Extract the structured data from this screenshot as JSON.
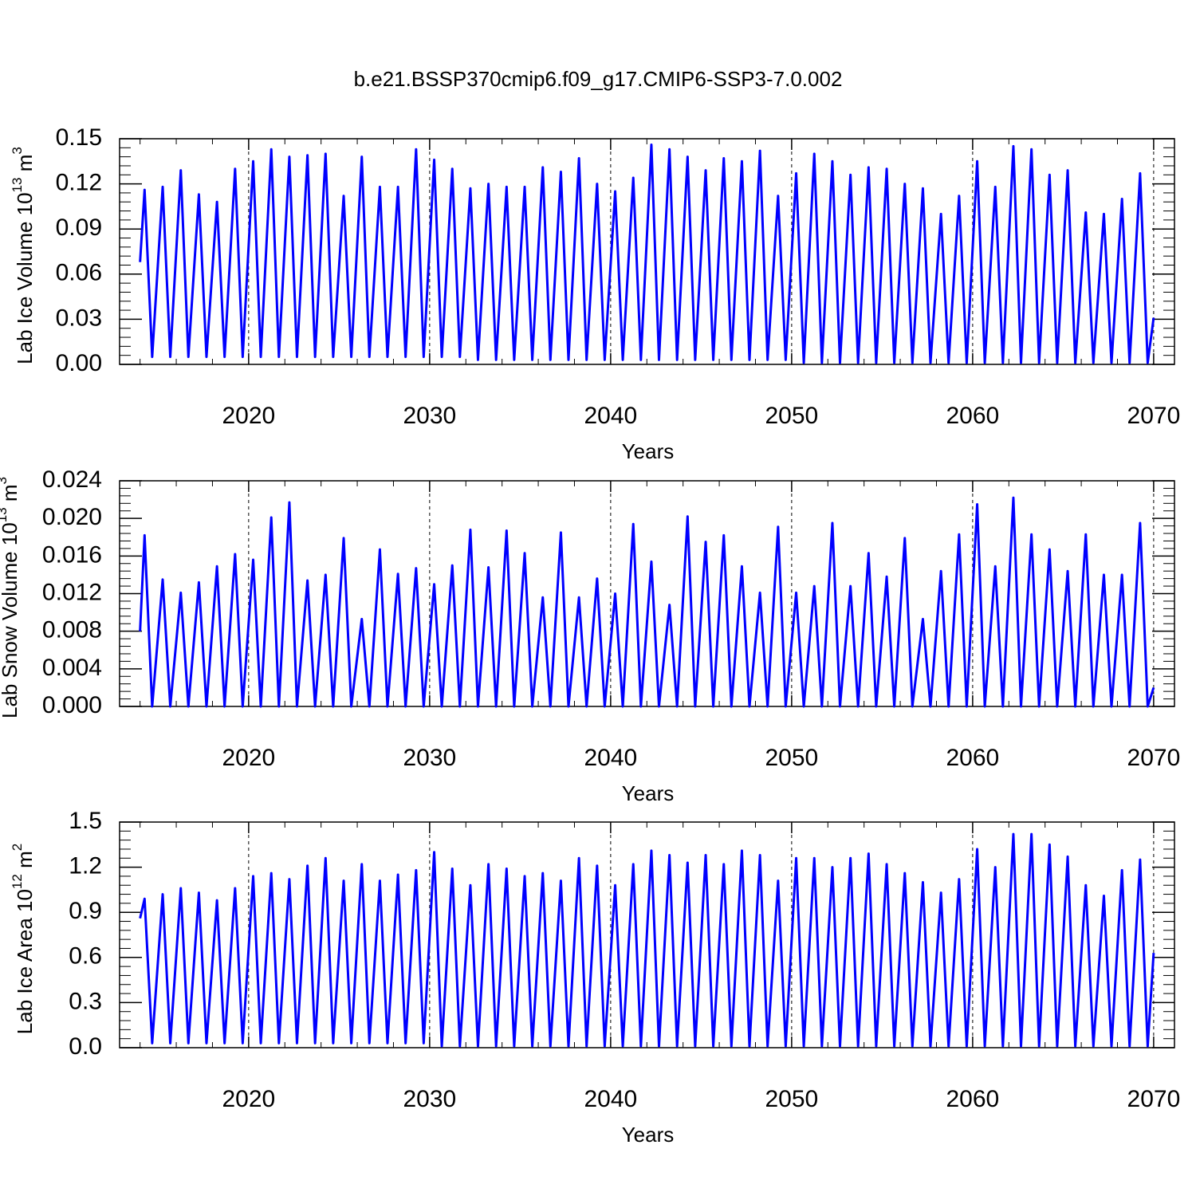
{
  "chart_data": [
    {
      "type": "line",
      "title": "b.e21.BSSP370cmip6.f09_g17.CMIP6-SSP3-7.0.002",
      "ylabel": [
        "Lab Ice Volume 10",
        "13",
        " m",
        "3"
      ],
      "xlabel": "Years",
      "color": "#0000ff",
      "grid": "x",
      "xlim": [
        2012.87,
        2071.15
      ],
      "xticks": [
        2020,
        2030,
        2040,
        2050,
        2060,
        2070
      ],
      "ylim": [
        0,
        0.15
      ],
      "yticks": [
        {
          "value": 0,
          "label": "0.00"
        },
        0.03,
        0.06,
        0.09,
        0.12,
        0.15
      ],
      "x": [
        2014.0,
        2014.25,
        2014.67,
        2015.25,
        2015.67,
        2016.25,
        2016.67,
        2017.25,
        2017.67,
        2018.25,
        2018.67,
        2019.25,
        2019.67,
        2020.25,
        2020.67,
        2021.25,
        2021.67,
        2022.25,
        2022.67,
        2023.25,
        2023.67,
        2024.25,
        2024.67,
        2025.25,
        2025.67,
        2026.25,
        2026.67,
        2027.25,
        2027.67,
        2028.25,
        2028.67,
        2029.25,
        2029.67,
        2030.25,
        2030.67,
        2031.25,
        2031.67,
        2032.25,
        2032.67,
        2033.25,
        2033.67,
        2034.25,
        2034.67,
        2035.25,
        2035.67,
        2036.25,
        2036.67,
        2037.25,
        2037.67,
        2038.25,
        2038.67,
        2039.25,
        2039.67,
        2040.25,
        2040.67,
        2041.25,
        2041.67,
        2042.25,
        2042.67,
        2043.25,
        2043.67,
        2044.25,
        2044.67,
        2045.25,
        2045.67,
        2046.25,
        2046.67,
        2047.25,
        2047.67,
        2048.25,
        2048.67,
        2049.25,
        2049.67,
        2050.25,
        2050.67,
        2051.25,
        2051.67,
        2052.25,
        2052.67,
        2053.25,
        2053.67,
        2054.25,
        2054.67,
        2055.25,
        2055.67,
        2056.25,
        2056.67,
        2057.25,
        2057.67,
        2058.25,
        2058.67,
        2059.25,
        2059.67,
        2060.25,
        2060.67,
        2061.25,
        2061.67,
        2062.25,
        2062.67,
        2063.25,
        2063.67,
        2064.25,
        2064.67,
        2065.25,
        2065.67,
        2066.25,
        2066.67,
        2067.25,
        2067.67,
        2068.25,
        2068.67,
        2069.25,
        2069.67,
        2070.0
      ],
      "values": [
        0.068,
        0.116,
        0.005,
        0.118,
        0.005,
        0.129,
        0.005,
        0.113,
        0.005,
        0.108,
        0.005,
        0.13,
        0.005,
        0.135,
        0.005,
        0.143,
        0.005,
        0.138,
        0.005,
        0.139,
        0.005,
        0.14,
        0.005,
        0.112,
        0.005,
        0.138,
        0.005,
        0.118,
        0.005,
        0.118,
        0.005,
        0.143,
        0.005,
        0.136,
        0.005,
        0.13,
        0.005,
        0.117,
        0.003,
        0.12,
        0.003,
        0.118,
        0.003,
        0.118,
        0.003,
        0.131,
        0.003,
        0.128,
        0.003,
        0.137,
        0.003,
        0.12,
        0.003,
        0.115,
        0.003,
        0.124,
        0.003,
        0.146,
        0.003,
        0.143,
        0.003,
        0.138,
        0.003,
        0.129,
        0.003,
        0.137,
        0.003,
        0.135,
        0.003,
        0.142,
        0.003,
        0.112,
        0.003,
        0.127,
        0.001,
        0.14,
        0.001,
        0.135,
        0.001,
        0.126,
        0.001,
        0.131,
        0.001,
        0.13,
        0.001,
        0.12,
        0.001,
        0.117,
        0.001,
        0.1,
        0.001,
        0.112,
        0.001,
        0.135,
        0.001,
        0.118,
        0.001,
        0.145,
        0.001,
        0.143,
        0.001,
        0.126,
        0.001,
        0.129,
        0.001,
        0.101,
        0.001,
        0.1,
        0.001,
        0.11,
        0.001,
        0.127,
        0.001,
        0.031
      ]
    },
    {
      "type": "line",
      "ylabel": [
        "Lab Snow Volume 10",
        "13",
        " m",
        "3"
      ],
      "xlabel": "Years",
      "color": "#0000ff",
      "grid": "x",
      "xlim": [
        2012.87,
        2071.15
      ],
      "xticks": [
        2020,
        2030,
        2040,
        2050,
        2060,
        2070
      ],
      "ylim": [
        0,
        0.024
      ],
      "yticks": [
        {
          "value": 0,
          "label": "0.000"
        },
        0.004,
        0.008,
        0.012,
        0.016,
        {
          "value": 0.02,
          "label": "0.020"
        },
        0.024
      ],
      "x": [
        2014.0,
        2014.25,
        2014.67,
        2015.25,
        2015.67,
        2016.25,
        2016.67,
        2017.25,
        2017.67,
        2018.25,
        2018.67,
        2019.25,
        2019.67,
        2020.25,
        2020.67,
        2021.25,
        2021.67,
        2022.25,
        2022.67,
        2023.25,
        2023.67,
        2024.25,
        2024.67,
        2025.25,
        2025.67,
        2026.25,
        2026.67,
        2027.25,
        2027.67,
        2028.25,
        2028.67,
        2029.25,
        2029.67,
        2030.25,
        2030.67,
        2031.25,
        2031.67,
        2032.25,
        2032.67,
        2033.25,
        2033.67,
        2034.25,
        2034.67,
        2035.25,
        2035.67,
        2036.25,
        2036.67,
        2037.25,
        2037.67,
        2038.25,
        2038.67,
        2039.25,
        2039.67,
        2040.25,
        2040.67,
        2041.25,
        2041.67,
        2042.25,
        2042.67,
        2043.25,
        2043.67,
        2044.25,
        2044.67,
        2045.25,
        2045.67,
        2046.25,
        2046.67,
        2047.25,
        2047.67,
        2048.25,
        2048.67,
        2049.25,
        2049.67,
        2050.25,
        2050.67,
        2051.25,
        2051.67,
        2052.25,
        2052.67,
        2053.25,
        2053.67,
        2054.25,
        2054.67,
        2055.25,
        2055.67,
        2056.25,
        2056.67,
        2057.25,
        2057.67,
        2058.25,
        2058.67,
        2059.25,
        2059.67,
        2060.25,
        2060.67,
        2061.25,
        2061.67,
        2062.25,
        2062.67,
        2063.25,
        2063.67,
        2064.25,
        2064.67,
        2065.25,
        2065.67,
        2066.25,
        2066.67,
        2067.25,
        2067.67,
        2068.25,
        2068.67,
        2069.25,
        2069.67,
        2070.0
      ],
      "values": [
        0.008,
        0.0182,
        0,
        0.0135,
        0,
        0.0121,
        0,
        0.0132,
        0,
        0.0149,
        0,
        0.0162,
        0,
        0.0156,
        0,
        0.0201,
        0,
        0.0217,
        0,
        0.0134,
        0,
        0.014,
        0,
        0.0179,
        0,
        0.0093,
        0,
        0.0167,
        0,
        0.0141,
        0,
        0.0147,
        0,
        0.013,
        0,
        0.015,
        0,
        0.0188,
        0,
        0.0148,
        0,
        0.0187,
        0,
        0.0163,
        0,
        0.0116,
        0,
        0.0185,
        0,
        0.0116,
        0,
        0.0136,
        0,
        0.012,
        0,
        0.0194,
        0,
        0.0154,
        0,
        0.0108,
        0,
        0.0202,
        0,
        0.0175,
        0,
        0.0182,
        0,
        0.0149,
        0,
        0.0121,
        0,
        0.0191,
        0,
        0.0121,
        0,
        0.0128,
        0,
        0.0195,
        0,
        0.0128,
        0,
        0.0163,
        0,
        0.0138,
        0,
        0.0179,
        0,
        0.0093,
        0,
        0.0144,
        0,
        0.0183,
        0,
        0.0215,
        0,
        0.0149,
        0,
        0.0222,
        0,
        0.0183,
        0,
        0.0167,
        0,
        0.0144,
        0,
        0.0183,
        0,
        0.014,
        0,
        0.014,
        0,
        0.0195,
        0,
        0.002
      ]
    },
    {
      "type": "line",
      "ylabel": [
        "Lab Ice Area 10",
        "12",
        " m",
        "2"
      ],
      "xlabel": "Years",
      "color": "#0000ff",
      "grid": "x",
      "xlim": [
        2012.87,
        2071.15
      ],
      "xticks": [
        2020,
        2030,
        2040,
        2050,
        2060,
        2070
      ],
      "ylim": [
        0,
        1.5
      ],
      "yticks": [
        {
          "value": 0,
          "label": "0.0"
        },
        0.3,
        0.6,
        0.9,
        1.2,
        1.5
      ],
      "x": [
        2014.0,
        2014.25,
        2014.67,
        2015.25,
        2015.67,
        2016.25,
        2016.67,
        2017.25,
        2017.67,
        2018.25,
        2018.67,
        2019.25,
        2019.67,
        2020.25,
        2020.67,
        2021.25,
        2021.67,
        2022.25,
        2022.67,
        2023.25,
        2023.67,
        2024.25,
        2024.67,
        2025.25,
        2025.67,
        2026.25,
        2026.67,
        2027.25,
        2027.67,
        2028.25,
        2028.67,
        2029.25,
        2029.67,
        2030.25,
        2030.67,
        2031.25,
        2031.67,
        2032.25,
        2032.67,
        2033.25,
        2033.67,
        2034.25,
        2034.67,
        2035.25,
        2035.67,
        2036.25,
        2036.67,
        2037.25,
        2037.67,
        2038.25,
        2038.67,
        2039.25,
        2039.67,
        2040.25,
        2040.67,
        2041.25,
        2041.67,
        2042.25,
        2042.67,
        2043.25,
        2043.67,
        2044.25,
        2044.67,
        2045.25,
        2045.67,
        2046.25,
        2046.67,
        2047.25,
        2047.67,
        2048.25,
        2048.67,
        2049.25,
        2049.67,
        2050.25,
        2050.67,
        2051.25,
        2051.67,
        2052.25,
        2052.67,
        2053.25,
        2053.67,
        2054.25,
        2054.67,
        2055.25,
        2055.67,
        2056.25,
        2056.67,
        2057.25,
        2057.67,
        2058.25,
        2058.67,
        2059.25,
        2059.67,
        2060.25,
        2060.67,
        2061.25,
        2061.67,
        2062.25,
        2062.67,
        2063.25,
        2063.67,
        2064.25,
        2064.67,
        2065.25,
        2065.67,
        2066.25,
        2066.67,
        2067.25,
        2067.67,
        2068.25,
        2068.67,
        2069.25,
        2069.67,
        2070.0
      ],
      "values": [
        0.86,
        0.99,
        0.03,
        1.02,
        0.03,
        1.06,
        0.03,
        1.03,
        0.03,
        0.98,
        0.03,
        1.06,
        0.03,
        1.14,
        0.03,
        1.16,
        0.03,
        1.12,
        0.03,
        1.21,
        0.03,
        1.26,
        0.03,
        1.11,
        0.03,
        1.22,
        0.03,
        1.11,
        0.03,
        1.15,
        0.03,
        1.18,
        0.03,
        1.3,
        0.01,
        1.19,
        0.01,
        1.08,
        0.01,
        1.22,
        0.01,
        1.19,
        0.01,
        1.14,
        0.01,
        1.16,
        0.01,
        1.11,
        0.01,
        1.26,
        0.01,
        1.21,
        0.01,
        1.08,
        0.01,
        1.22,
        0.01,
        1.31,
        0.01,
        1.28,
        0.01,
        1.23,
        0.01,
        1.28,
        0.01,
        1.22,
        0.01,
        1.31,
        0.01,
        1.28,
        0.01,
        1.11,
        0.01,
        1.26,
        0.01,
        1.26,
        0.01,
        1.2,
        0.01,
        1.26,
        0.01,
        1.29,
        0.01,
        1.22,
        0.01,
        1.16,
        0.01,
        1.1,
        0.01,
        1.03,
        0.01,
        1.12,
        0.01,
        1.32,
        0.01,
        1.2,
        0.01,
        1.42,
        0.01,
        1.42,
        0.01,
        1.35,
        0.01,
        1.27,
        0.01,
        1.08,
        0.01,
        1.01,
        0.01,
        1.18,
        0.01,
        1.25,
        0.01,
        0.63
      ]
    }
  ]
}
